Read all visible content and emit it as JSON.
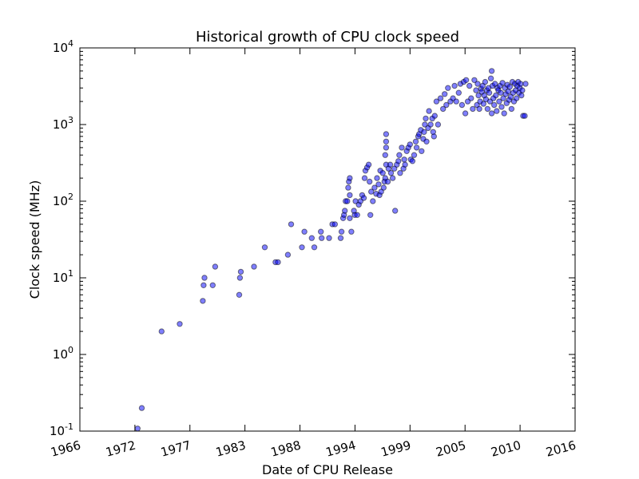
{
  "chart_data": {
    "type": "scatter",
    "title": "Historical growth of CPU clock speed",
    "xlabel": "Date of CPU Release",
    "ylabel": "Clock speed (MHz)",
    "x_scale": "date",
    "y_scale": "log",
    "xlim": [
      "1966-01-01",
      "2016-01-01"
    ],
    "ylim": [
      0.1,
      10000
    ],
    "x_ticks": [
      "1966",
      "1972",
      "1977",
      "1983",
      "1988",
      "1994",
      "1999",
      "2005",
      "2010",
      "2016"
    ],
    "y_ticks": [
      {
        "base": "10",
        "exp": "-1"
      },
      {
        "base": "10",
        "exp": "0"
      },
      {
        "base": "10",
        "exp": "1"
      },
      {
        "base": "10",
        "exp": "2"
      },
      {
        "base": "10",
        "exp": "3"
      },
      {
        "base": "10",
        "exp": "4"
      }
    ],
    "grid": false,
    "legend": "none",
    "marker_color": "#0000ff",
    "marker_edge": "#000000",
    "marker_alpha": 0.5,
    "points": [
      [
        "1971-11-01",
        0.108
      ],
      [
        "1972-04-01",
        0.2
      ],
      [
        "1974-04-01",
        2
      ],
      [
        "1976-02-01",
        2.5
      ],
      [
        "1978-06-01",
        5
      ],
      [
        "1978-07-01",
        8
      ],
      [
        "1978-08-01",
        10
      ],
      [
        "1979-06-01",
        8
      ],
      [
        "1979-09-01",
        14
      ],
      [
        "1982-02-01",
        6
      ],
      [
        "1982-03-01",
        10
      ],
      [
        "1982-04-01",
        12
      ],
      [
        "1983-08-01",
        14
      ],
      [
        "1984-09-01",
        25
      ],
      [
        "1985-10-01",
        16
      ],
      [
        "1986-01-01",
        16
      ],
      [
        "1987-01-01",
        20
      ],
      [
        "1987-05-01",
        50
      ],
      [
        "1988-06-01",
        25
      ],
      [
        "1988-09-01",
        40
      ],
      [
        "1989-06-01",
        33
      ],
      [
        "1989-09-01",
        25
      ],
      [
        "1990-05-01",
        40
      ],
      [
        "1990-06-01",
        33
      ],
      [
        "1991-03-01",
        33
      ],
      [
        "1991-07-01",
        50
      ],
      [
        "1991-10-01",
        50
      ],
      [
        "1992-05-01",
        33
      ],
      [
        "1992-06-01",
        40
      ],
      [
        "1992-08-01",
        60
      ],
      [
        "1992-09-01",
        66
      ],
      [
        "1992-10-01",
        75
      ],
      [
        "1992-11-01",
        100
      ],
      [
        "1993-01-01",
        100
      ],
      [
        "1993-02-01",
        150
      ],
      [
        "1993-03-01",
        180
      ],
      [
        "1993-04-01",
        200
      ],
      [
        "1993-04-01",
        60
      ],
      [
        "1993-04-01",
        120
      ],
      [
        "1993-06-01",
        40
      ],
      [
        "1993-09-01",
        75
      ],
      [
        "1993-10-01",
        66
      ],
      [
        "1993-11-01",
        100
      ],
      [
        "1994-01-01",
        66
      ],
      [
        "1994-03-01",
        90
      ],
      [
        "1994-05-01",
        100
      ],
      [
        "1994-07-01",
        120
      ],
      [
        "1994-09-01",
        110
      ],
      [
        "1994-10-01",
        200
      ],
      [
        "1994-11-01",
        250
      ],
      [
        "1995-01-01",
        275
      ],
      [
        "1995-03-01",
        300
      ],
      [
        "1995-04-01",
        180
      ],
      [
        "1995-05-01",
        66
      ],
      [
        "1995-06-01",
        133
      ],
      [
        "1995-08-01",
        100
      ],
      [
        "1995-10-01",
        150
      ],
      [
        "1995-12-01",
        125
      ],
      [
        "1996-01-01",
        200
      ],
      [
        "1996-03-01",
        166
      ],
      [
        "1996-04-01",
        120
      ],
      [
        "1996-05-01",
        250
      ],
      [
        "1996-06-01",
        133
      ],
      [
        "1996-08-01",
        233
      ],
      [
        "1996-09-01",
        150
      ],
      [
        "1996-10-01",
        180
      ],
      [
        "1996-11-01",
        200
      ],
      [
        "1996-11-01",
        400
      ],
      [
        "1996-12-01",
        500
      ],
      [
        "1996-12-01",
        600
      ],
      [
        "1996-12-01",
        750
      ],
      [
        "1996-12-01",
        300
      ],
      [
        "1997-02-01",
        180
      ],
      [
        "1997-03-01",
        266
      ],
      [
        "1997-05-01",
        300
      ],
      [
        "1997-06-01",
        233
      ],
      [
        "1997-08-01",
        200
      ],
      [
        "1997-10-01",
        266
      ],
      [
        "1997-11-01",
        75
      ],
      [
        "1998-01-01",
        300
      ],
      [
        "1998-03-01",
        333
      ],
      [
        "1998-04-01",
        400
      ],
      [
        "1998-05-01",
        233
      ],
      [
        "1998-07-01",
        500
      ],
      [
        "1998-09-01",
        266
      ],
      [
        "1998-10-01",
        350
      ],
      [
        "1998-11-01",
        300
      ],
      [
        "1999-01-01",
        450
      ],
      [
        "1999-03-01",
        500
      ],
      [
        "1999-05-01",
        550
      ],
      [
        "1999-06-01",
        350
      ],
      [
        "1999-08-01",
        333
      ],
      [
        "1999-10-01",
        400
      ],
      [
        "1999-12-01",
        600
      ],
      [
        "2000-01-01",
        500
      ],
      [
        "2000-03-01",
        700
      ],
      [
        "2000-04-01",
        750
      ],
      [
        "2000-06-01",
        850
      ],
      [
        "2000-07-01",
        450
      ],
      [
        "2000-09-01",
        650
      ],
      [
        "2000-10-01",
        800
      ],
      [
        "2000-11-01",
        1000
      ],
      [
        "2000-12-01",
        1200
      ],
      [
        "2001-01-01",
        600
      ],
      [
        "2001-03-01",
        900
      ],
      [
        "2001-04-01",
        1500
      ],
      [
        "2001-06-01",
        1000
      ],
      [
        "2001-08-01",
        1200
      ],
      [
        "2001-09-01",
        800
      ],
      [
        "2001-10-01",
        700
      ],
      [
        "2001-11-01",
        1300
      ],
      [
        "2002-01-01",
        2000
      ],
      [
        "2002-03-01",
        1000
      ],
      [
        "2002-06-01",
        2200
      ],
      [
        "2002-09-01",
        1600
      ],
      [
        "2002-11-01",
        2500
      ],
      [
        "2003-01-01",
        1800
      ],
      [
        "2003-03-01",
        3000
      ],
      [
        "2003-06-01",
        2000
      ],
      [
        "2003-09-01",
        2200
      ],
      [
        "2003-11-01",
        3200
      ],
      [
        "2004-01-01",
        2000
      ],
      [
        "2004-04-01",
        2600
      ],
      [
        "2004-06-01",
        3400
      ],
      [
        "2004-08-01",
        1800
      ],
      [
        "2004-10-01",
        3600
      ],
      [
        "2004-12-01",
        1400
      ],
      [
        "2005-01-01",
        3800
      ],
      [
        "2005-03-01",
        2000
      ],
      [
        "2005-05-01",
        3200
      ],
      [
        "2005-07-01",
        2200
      ],
      [
        "2005-09-01",
        1600
      ],
      [
        "2005-11-01",
        3800
      ],
      [
        "2006-01-01",
        2800
      ],
      [
        "2006-02-01",
        1800
      ],
      [
        "2006-03-01",
        3400
      ],
      [
        "2006-04-01",
        2400
      ],
      [
        "2006-05-01",
        1600
      ],
      [
        "2006-06-01",
        2000
      ],
      [
        "2006-07-01",
        2933
      ],
      [
        "2006-08-01",
        2666
      ],
      [
        "2006-09-01",
        3200
      ],
      [
        "2006-10-01",
        1866
      ],
      [
        "2006-11-01",
        2400
      ],
      [
        "2006-12-01",
        3600
      ],
      [
        "2007-01-01",
        2133
      ],
      [
        "2007-02-01",
        2800
      ],
      [
        "2007-03-01",
        1600
      ],
      [
        "2007-04-01",
        3000
      ],
      [
        "2007-05-01",
        2600
      ],
      [
        "2007-06-01",
        2000
      ],
      [
        "2007-07-01",
        4000
      ],
      [
        "2007-08-01",
        5000
      ],
      [
        "2007-08-01",
        1400
      ],
      [
        "2007-09-01",
        3200
      ],
      [
        "2007-10-01",
        2200
      ],
      [
        "2007-11-01",
        1800
      ],
      [
        "2007-12-01",
        3400
      ],
      [
        "2008-01-01",
        2400
      ],
      [
        "2008-02-01",
        1500
      ],
      [
        "2008-03-01",
        3000
      ],
      [
        "2008-04-01",
        2800
      ],
      [
        "2008-05-01",
        2000
      ],
      [
        "2008-06-01",
        3200
      ],
      [
        "2008-07-01",
        2600
      ],
      [
        "2008-08-01",
        1700
      ],
      [
        "2008-09-01",
        3500
      ],
      [
        "2008-10-01",
        2200
      ],
      [
        "2008-11-01",
        1400
      ],
      [
        "2008-12-01",
        3000
      ],
      [
        "2009-01-01",
        2500
      ],
      [
        "2009-02-01",
        1900
      ],
      [
        "2009-03-01",
        3300
      ],
      [
        "2009-04-01",
        2700
      ],
      [
        "2009-05-01",
        2100
      ],
      [
        "2009-06-01",
        3100
      ],
      [
        "2009-07-01",
        2300
      ],
      [
        "2009-08-01",
        1600
      ],
      [
        "2009-09-01",
        3600
      ],
      [
        "2009-10-01",
        2600
      ],
      [
        "2009-11-01",
        2000
      ],
      [
        "2009-12-01",
        3400
      ],
      [
        "2010-01-01",
        2800
      ],
      [
        "2010-02-01",
        2200
      ],
      [
        "2010-03-01",
        3200
      ],
      [
        "2010-04-01",
        3600
      ],
      [
        "2010-05-01",
        2600
      ],
      [
        "2010-06-01",
        3000
      ],
      [
        "2010-07-01",
        3400
      ],
      [
        "2010-08-01",
        2400
      ],
      [
        "2010-09-01",
        2800
      ],
      [
        "2010-10-01",
        1300
      ],
      [
        "2010-12-01",
        1300
      ],
      [
        "2011-01-01",
        3400
      ]
    ]
  }
}
